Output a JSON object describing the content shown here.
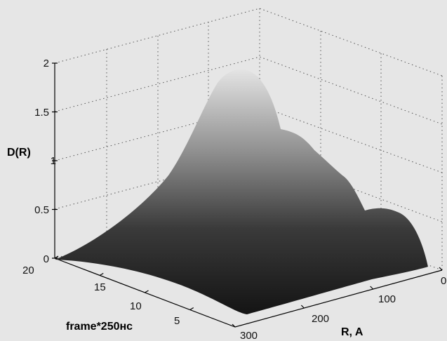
{
  "chart_data": {
    "type": "surface",
    "title": "",
    "zlabel": "D(R)",
    "xlabel": "R, A",
    "ylabel": "frame*250нс",
    "zlim": [
      0,
      2
    ],
    "xlim": [
      0,
      300
    ],
    "ylim": [
      0,
      20
    ],
    "z_ticks": [
      "0",
      "0.5",
      "1",
      "1.5",
      "2"
    ],
    "x_ticks": [
      "0",
      "100",
      "200",
      "300"
    ],
    "y_ticks": [
      "5",
      "10",
      "15",
      "20"
    ],
    "grid": true,
    "colormap": "gray",
    "peaks": [
      {
        "frame": 2,
        "R": 160,
        "D": 1.8
      },
      {
        "frame": 4,
        "R": 135,
        "D": 1.15
      },
      {
        "frame": 7,
        "R": 115,
        "D": 0.75
      },
      {
        "frame": 11,
        "R": 85,
        "D": 0.45
      }
    ]
  }
}
